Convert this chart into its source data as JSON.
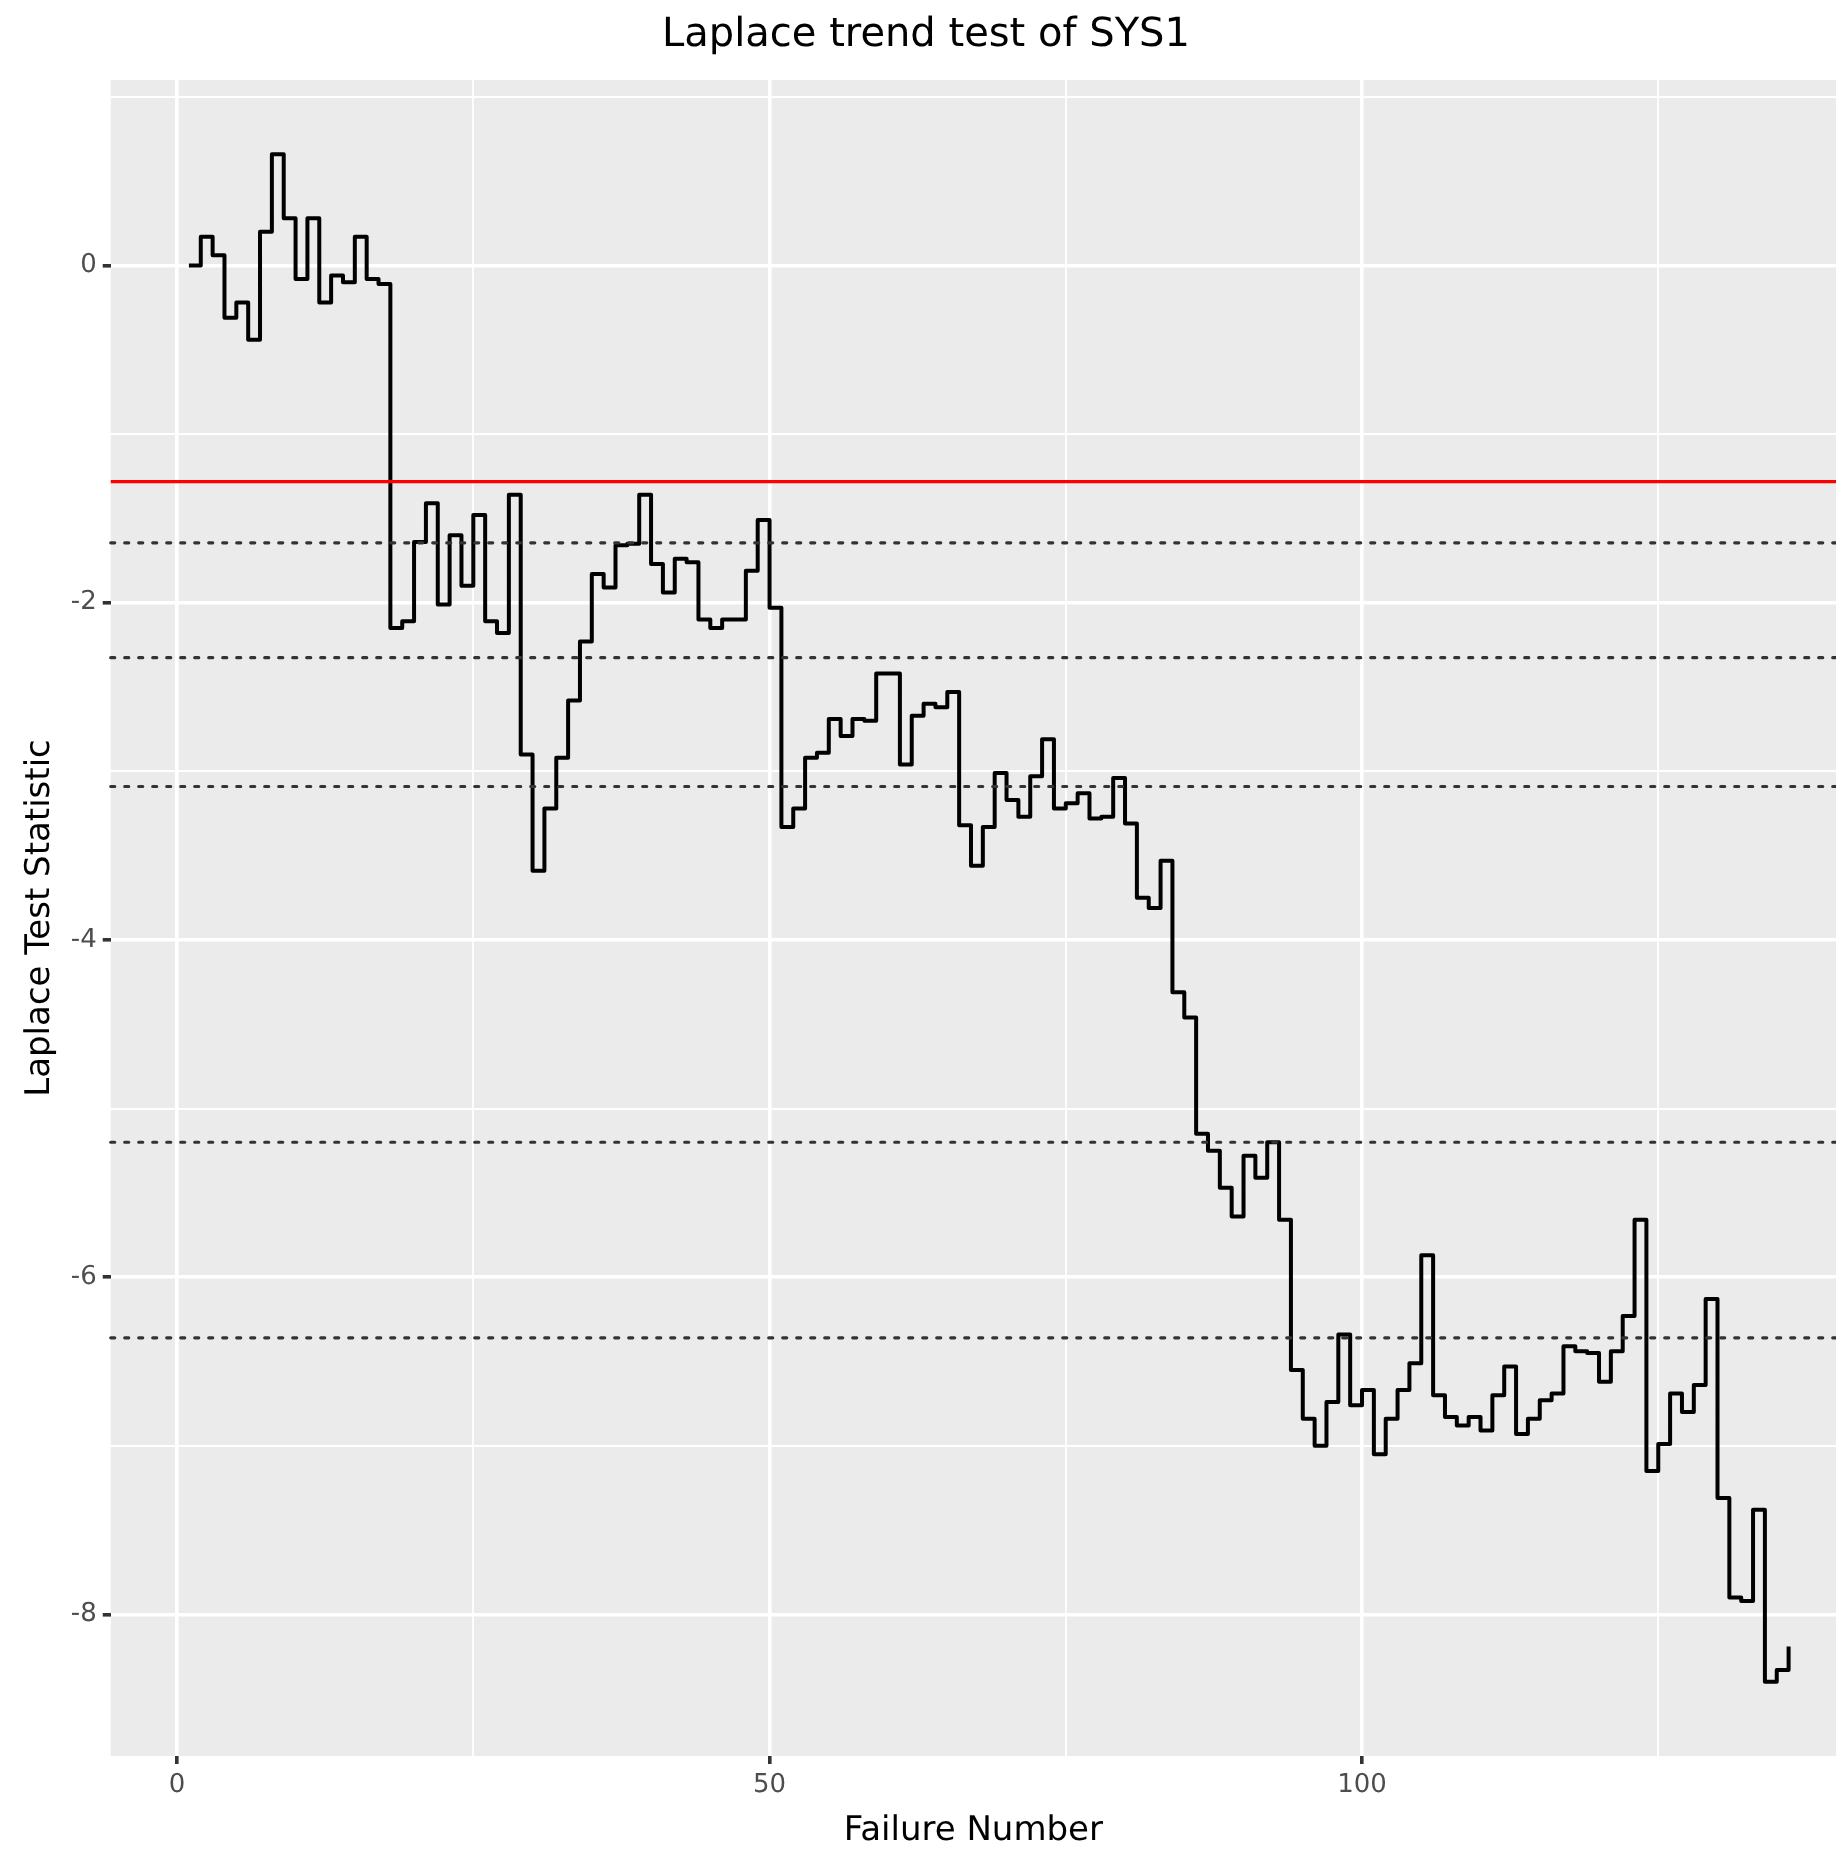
{
  "chart_data": {
    "type": "step",
    "title": "Laplace trend test of SYS1",
    "xlabel": "Failure Number",
    "ylabel": "Laplace Test Statistic",
    "x": [
      1,
      2,
      3,
      4,
      5,
      6,
      7,
      8,
      9,
      10,
      11,
      12,
      13,
      14,
      15,
      16,
      17,
      18,
      19,
      20,
      21,
      22,
      23,
      24,
      25,
      26,
      27,
      28,
      29,
      30,
      31,
      32,
      33,
      34,
      35,
      36,
      37,
      38,
      39,
      40,
      41,
      42,
      43,
      44,
      45,
      46,
      47,
      48,
      49,
      50,
      51,
      52,
      53,
      54,
      55,
      56,
      57,
      58,
      59,
      60,
      61,
      62,
      63,
      64,
      65,
      66,
      67,
      68,
      69,
      70,
      71,
      72,
      73,
      74,
      75,
      76,
      77,
      78,
      79,
      80,
      81,
      82,
      83,
      84,
      85,
      86,
      87,
      88,
      89,
      90,
      91,
      92,
      93,
      94,
      95,
      96,
      97,
      98,
      99,
      100,
      101,
      102,
      103,
      104,
      105,
      106,
      107,
      108,
      109,
      110,
      111,
      112,
      113,
      114,
      115,
      116,
      117,
      118,
      119,
      120,
      121,
      122,
      123,
      124,
      125,
      126,
      127,
      128,
      129,
      130,
      131,
      132,
      133,
      134,
      135,
      136
    ],
    "series": [
      {
        "color": "#000000",
        "values": [
          0,
          0.17,
          0.06,
          -0.31,
          -0.22,
          -0.44,
          0.2,
          0.66,
          0.28,
          -0.08,
          0.28,
          -0.22,
          -0.06,
          -0.1,
          0.17,
          -0.08,
          -0.11,
          -2.15,
          -2.11,
          -1.64,
          -1.41,
          -2.01,
          -1.6,
          -1.9,
          -1.48,
          -2.11,
          -2.18,
          -1.36,
          -2.9,
          -3.59,
          -3.22,
          -2.92,
          -2.58,
          -2.23,
          -1.83,
          -1.91,
          -1.66,
          -1.65,
          -1.36,
          -1.77,
          -1.94,
          -1.74,
          -1.76,
          -2.1,
          -2.15,
          -2.1,
          -2.1,
          -1.81,
          -1.51,
          -2.03,
          -3.33,
          -3.22,
          -2.92,
          -2.89,
          -2.69,
          -2.79,
          -2.69,
          -2.7,
          -2.42,
          -2.42,
          -2.96,
          -2.67,
          -2.6,
          -2.62,
          -2.53,
          -3.32,
          -3.56,
          -3.33,
          -3.01,
          -3.17,
          -3.27,
          -3.03,
          -2.81,
          -3.22,
          -3.19,
          -3.13,
          -3.28,
          -3.27,
          -3.04,
          -3.31,
          -3.75,
          -3.81,
          -3.53,
          -4.31,
          -4.46,
          -5.15,
          -5.25,
          -5.47,
          -5.64,
          -5.28,
          -5.41,
          -5.2,
          -5.66,
          -6.55,
          -6.84,
          -7.0,
          -6.74,
          -6.34,
          -6.76,
          -6.67,
          -7.05,
          -6.84,
          -6.67,
          -6.51,
          -5.87,
          -6.7,
          -6.83,
          -6.88,
          -6.83,
          -6.91,
          -6.7,
          -6.53,
          -6.93,
          -6.84,
          -6.73,
          -6.69,
          -6.41,
          -6.44,
          -6.45,
          -6.62,
          -6.44,
          -6.23,
          -5.66,
          -7.15,
          -6.99,
          -6.69,
          -6.8,
          -6.64,
          -6.13,
          -7.31,
          -7.9,
          -7.92,
          -7.38,
          -8.4,
          -8.33,
          -8.19
        ]
      }
    ],
    "xlim": [
      -5.6,
      140
    ],
    "xticks": [
      0,
      {
        "value": 25,
        "label": null
      },
      50,
      {
        "value": 75,
        "label": null
      },
      100,
      {
        "value": 125,
        "label": null
      }
    ],
    "ylim": [
      -8.84,
      1.1
    ],
    "yticks": [
      -8,
      {
        "value": -7,
        "label": null
      },
      -6,
      {
        "value": -5,
        "label": null
      },
      -4,
      {
        "value": -3,
        "label": null
      },
      -2,
      {
        "value": -1,
        "label": null
      },
      0,
      {
        "value": 1,
        "label": null
      }
    ],
    "grid": true,
    "legend": false,
    "ref_lines": [
      {
        "axis": "y",
        "value": -1.282,
        "color": "#ff0000",
        "line_style": "solid"
      },
      {
        "axis": "y",
        "value": -1.645,
        "color": "#333333",
        "line_style": "dotted"
      },
      {
        "axis": "y",
        "value": -2.326,
        "color": "#333333",
        "line_style": "dotted"
      },
      {
        "axis": "y",
        "value": -3.09,
        "color": "#333333",
        "line_style": "dotted"
      },
      {
        "axis": "y",
        "value": -5.2,
        "color": "#333333",
        "line_style": "dotted"
      },
      {
        "axis": "y",
        "value": -6.36,
        "color": "#333333",
        "line_style": "dotted"
      }
    ]
  }
}
